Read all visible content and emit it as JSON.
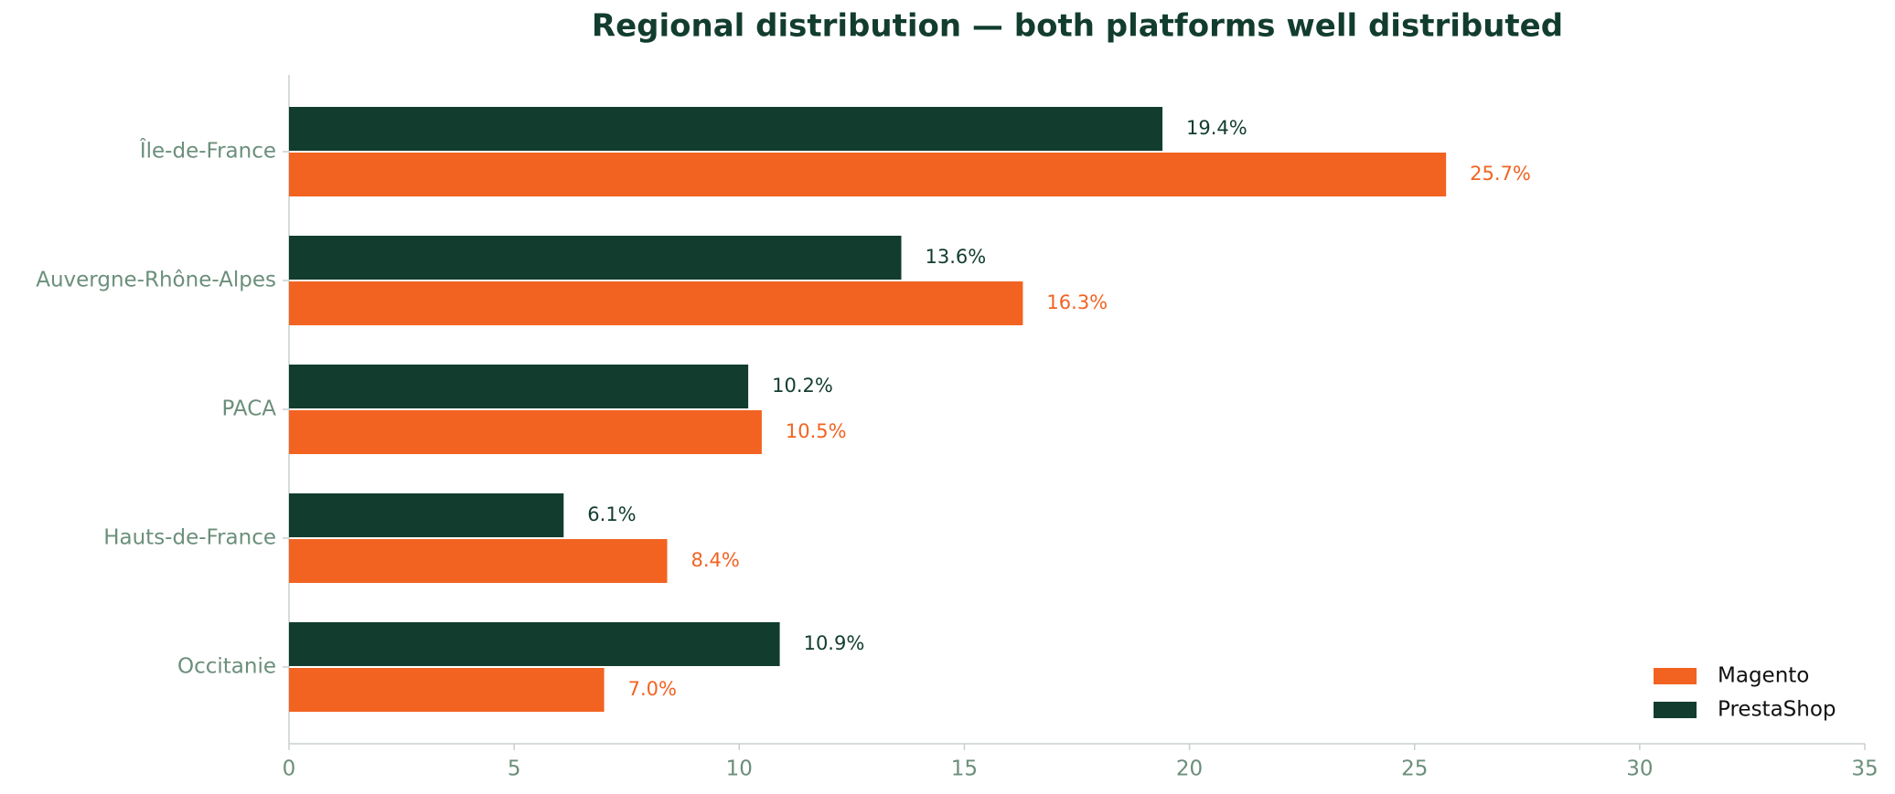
{
  "chart_data": {
    "type": "hbar",
    "title": "Regional distribution — both platforms well distributed",
    "categories": [
      "Île-de-France",
      "Auvergne-Rhône-Alpes",
      "PACA",
      "Hauts-de-France",
      "Occitanie"
    ],
    "series": [
      {
        "name": "Magento",
        "color": "#f26322",
        "values": [
          25.7,
          16.3,
          10.5,
          8.4,
          7.0
        ],
        "value_labels": [
          "25.7%",
          "16.3%",
          "10.5%",
          "8.4%",
          "7.0%"
        ]
      },
      {
        "name": "PrestaShop",
        "color": "#123d2e",
        "values": [
          19.4,
          13.6,
          10.2,
          6.1,
          10.9
        ],
        "value_labels": [
          "19.4%",
          "13.6%",
          "10.2%",
          "6.1%",
          "10.9%"
        ]
      }
    ],
    "xlim": [
      0,
      35
    ],
    "xticks": [
      0,
      5,
      10,
      15,
      20,
      25,
      30,
      35
    ],
    "legend": "lower right"
  }
}
